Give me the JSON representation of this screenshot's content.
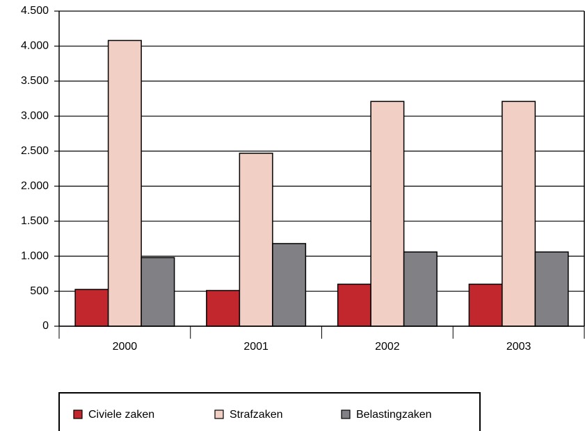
{
  "chart_data": {
    "type": "bar",
    "categories": [
      "2000",
      "2001",
      "2002",
      "2003"
    ],
    "series": [
      {
        "name": "Civiele zaken",
        "color": "#c1272d",
        "values": [
          525,
          510,
          600,
          600
        ]
      },
      {
        "name": "Strafzaken",
        "color": "#f2cfc4",
        "values": [
          4080,
          2470,
          3210,
          3210
        ]
      },
      {
        "name": "Belastingzaken",
        "color": "#808085",
        "values": [
          980,
          1180,
          1060,
          1060
        ]
      }
    ],
    "ylim": [
      0,
      4500
    ],
    "yticks": [
      0,
      500,
      {
        "value": 1000,
        "label": "1.000"
      },
      {
        "value": 1500,
        "label": "1.500"
      },
      {
        "value": 2000,
        "label": "2.000"
      },
      {
        "value": 2500,
        "label": "2.500"
      },
      {
        "value": 3000,
        "label": "3.000"
      },
      {
        "value": 3500,
        "label": "3.500"
      },
      {
        "value": 4000,
        "label": "4.000"
      },
      {
        "value": 4500,
        "label": "4.500"
      }
    ],
    "grid": true,
    "legend": "bottom"
  }
}
